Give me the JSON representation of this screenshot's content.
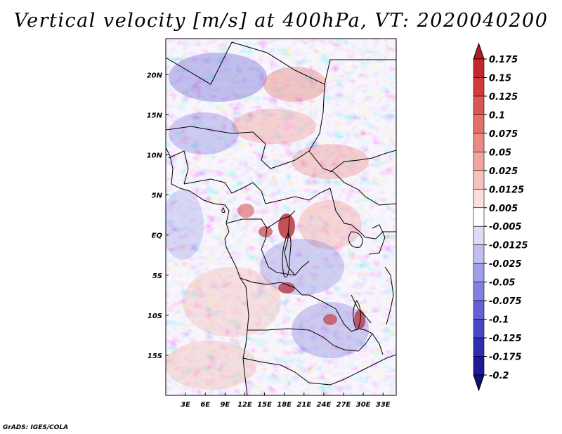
{
  "title": "Vertical velocity [m/s] at 400hPa, VT: 2020040200",
  "credit": "GrADS: IGES/COLA",
  "map": {
    "lon_range": [
      0,
      35
    ],
    "lat_range": [
      -20,
      24.5
    ],
    "lat_ticks": [
      "20N",
      "15N",
      "10N",
      "5N",
      "EQ",
      "5S",
      "10S",
      "15S"
    ],
    "lat_tick_values": [
      20,
      15,
      10,
      5,
      0,
      -5,
      -10,
      -15
    ],
    "lon_ticks": [
      "3E",
      "6E",
      "9E",
      "12E",
      "15E",
      "18E",
      "21E",
      "24E",
      "27E",
      "30E",
      "33E"
    ],
    "lon_tick_values": [
      3,
      6,
      9,
      12,
      15,
      18,
      21,
      24,
      27,
      30,
      33
    ]
  },
  "colorbar": {
    "labels": [
      "0.175",
      "0.15",
      "0.125",
      "0.1",
      "0.075",
      "0.05",
      "0.025",
      "0.0125",
      "0.005",
      "-0.005",
      "-0.0125",
      "-0.025",
      "-0.05",
      "-0.075",
      "-0.1",
      "-0.125",
      "-0.175",
      "-0.2"
    ],
    "colors": [
      "#b01c22",
      "#c4282c",
      "#d13b3c",
      "#db5551",
      "#e37068",
      "#ea8a82",
      "#f0a69f",
      "#f5c2bd",
      "#fadfdc",
      "#ffffff",
      "#dcdcf7",
      "#c0bff0",
      "#a19fe8",
      "#8280df",
      "#6461d4",
      "#4946c6",
      "#2f2cb3",
      "#1c1898",
      "#10107a"
    ]
  }
}
